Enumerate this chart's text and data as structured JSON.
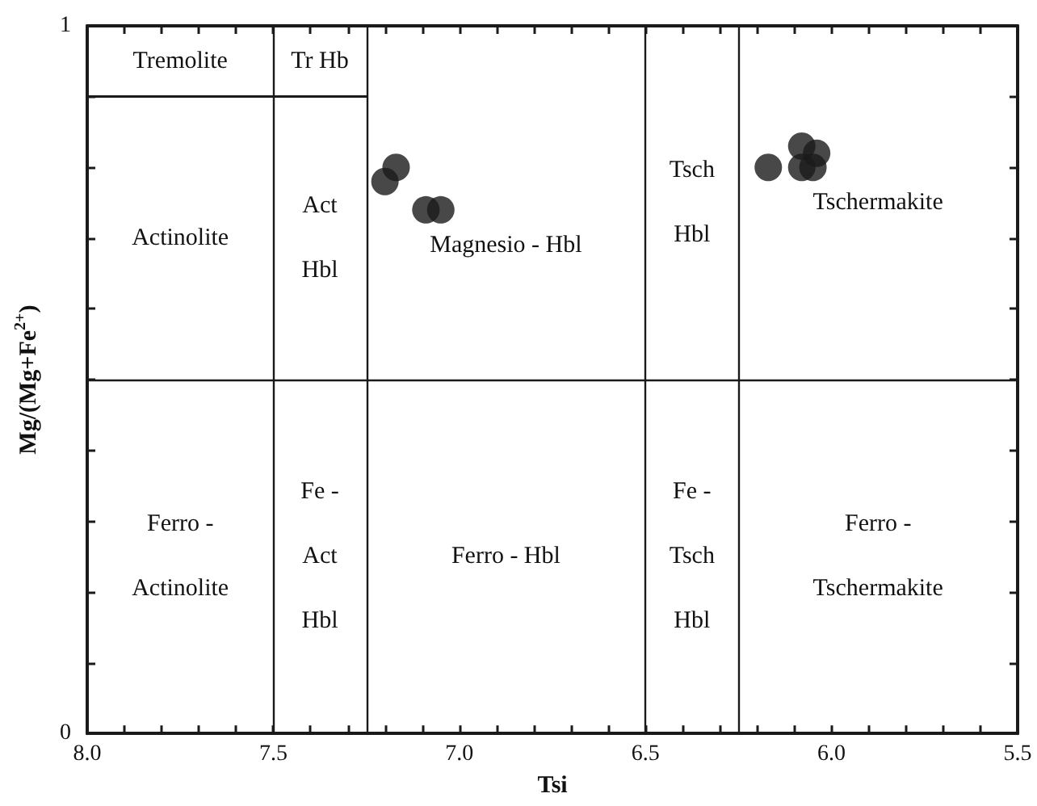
{
  "chart_data": {
    "type": "scatter",
    "xlabel": "Tsi",
    "ylabel": "Mg/(Mg+Fe$^{2+}$)",
    "xlim": [
      8.0,
      5.5
    ],
    "ylim": [
      0,
      1
    ],
    "xticks": [
      {
        "value": 8,
        "label": "8.0"
      },
      {
        "value": 7.9,
        "label": null
      },
      {
        "value": 7.8,
        "label": null
      },
      {
        "value": 7.7,
        "label": null
      },
      {
        "value": 7.6,
        "label": null
      },
      7.5,
      {
        "value": 7.4,
        "label": null
      },
      {
        "value": 7.3,
        "label": null
      },
      {
        "value": 7.2,
        "label": null
      },
      {
        "value": 7.1,
        "label": null
      },
      {
        "value": 7,
        "label": "7.0"
      },
      {
        "value": 6.9,
        "label": null
      },
      {
        "value": 6.8,
        "label": null
      },
      {
        "value": 6.7,
        "label": null
      },
      {
        "value": 6.6,
        "label": null
      },
      6.5,
      {
        "value": 6.4,
        "label": null
      },
      {
        "value": 6.3,
        "label": null
      },
      {
        "value": 6.2,
        "label": null
      },
      {
        "value": 6.1,
        "label": null
      },
      {
        "value": 6,
        "label": "6.0"
      },
      {
        "value": 5.9,
        "label": null
      },
      {
        "value": 5.8,
        "label": null
      },
      {
        "value": 5.7,
        "label": null
      },
      {
        "value": 5.6,
        "label": null
      },
      5.5
    ],
    "yticks": [
      0,
      {
        "value": 0.1,
        "label": null
      },
      {
        "value": 0.2,
        "label": null
      },
      {
        "value": 0.3,
        "label": null
      },
      {
        "value": 0.4,
        "label": null
      },
      {
        "value": 0.5,
        "label": null
      },
      {
        "value": 0.6,
        "label": null
      },
      {
        "value": 0.7,
        "label": null
      },
      {
        "value": 0.8,
        "label": null
      },
      {
        "value": 0.9,
        "label": null
      },
      1
    ],
    "grid": false,
    "marker": "circle",
    "series": [
      {
        "color": "#1a1a1a",
        "x": [
          7.2,
          7.17,
          7.09,
          7.05,
          6.17,
          6.08,
          6.04,
          6.08,
          6.05
        ],
        "values": [
          0.78,
          0.8,
          0.74,
          0.74,
          0.8,
          0.83,
          0.82,
          0.8,
          0.8
        ]
      },
      {
        "type": "line",
        "color": "#1a1a1a",
        "marker": "none",
        "line_style": "solid",
        "x": [
          8.0,
          7.25
        ],
        "values": [
          0.9,
          0.9
        ]
      }
    ],
    "ref_lines": [
      {
        "axis": "x",
        "value": 7.5,
        "color": "#1a1a1a"
      },
      {
        "axis": "x",
        "value": 7.25,
        "color": "#1a1a1a"
      },
      {
        "axis": "x",
        "value": 6.5,
        "color": "#1a1a1a"
      },
      {
        "axis": "x",
        "value": 6.25,
        "color": "#1a1a1a"
      },
      {
        "axis": "y",
        "value": 0.5,
        "color": "#1a1a1a"
      }
    ],
    "annotations": [
      "Tremolite",
      "Tr Hb",
      "Actinolite",
      "Act\nHbl",
      "Magnesio - Hbl",
      "Tsch\nHbl",
      "Tschermakite",
      "Ferro -\nActinolite",
      "Fe -\nAct\nHbl",
      "Ferro - Hbl",
      "Fe -\nTsch\nHbl",
      "Ferro -\nTschermakite"
    ]
  }
}
